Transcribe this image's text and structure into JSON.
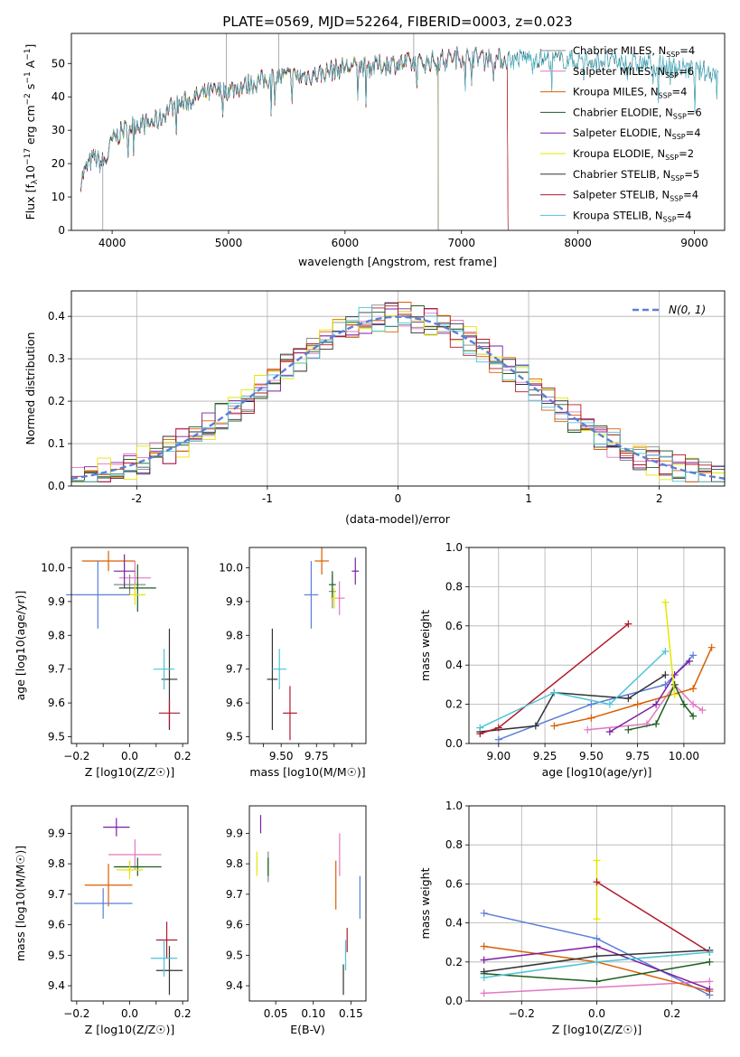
{
  "title": "PLATE=0569, MJD=52264, FIBERID=0003, z=0.023",
  "colors": [
    "#888888",
    "#e377c2",
    "#d95f02",
    "#1b5e20",
    "#7b1fa2",
    "#e6e600",
    "#333333",
    "#b2182b",
    "#4fc3d7"
  ],
  "chart_data": [
    {
      "id": "spectrum",
      "type": "line",
      "xlabel": "wavelength [Angstrom, rest frame]",
      "ylabel": "Flux [f$_\\lambda$10$^{-17}$ erg cm$^{-2}$ s$^{-1}$ A$^{-1}$]",
      "ylabel_main": "Flux [f",
      "ylabel_lambda": "λ",
      "ylabel_rest": "10",
      "ylabel_exp1": "−17",
      "ylabel_mid": " erg cm",
      "ylabel_exp2": "−2",
      "ylabel_mid2": " s",
      "ylabel_exp3": "−1",
      "ylabel_mid3": " A",
      "ylabel_exp4": "−1",
      "ylabel_end": "]",
      "xlim": [
        3650,
        9260
      ],
      "ylim": [
        0,
        59
      ],
      "xticks": [
        4000,
        5000,
        6000,
        7000,
        8000,
        9000
      ],
      "yticks": [
        0,
        10,
        20,
        30,
        40,
        50
      ],
      "spectrum_shape": {
        "x": [
          3730,
          3800,
          3850,
          3900,
          3950,
          4000,
          4100,
          4200,
          4300,
          4400,
          4500,
          4600,
          4800,
          5000,
          5200,
          5400,
          5600,
          5800,
          6000,
          6200,
          6400,
          6600,
          6800,
          7000,
          7200,
          7400,
          7600,
          7800,
          8000,
          8200,
          8400,
          8600,
          8800,
          9000,
          9200
        ],
        "y": [
          15,
          20,
          22,
          20,
          21,
          27,
          30,
          32,
          32,
          33,
          37,
          38,
          41,
          42,
          44,
          46,
          46,
          47,
          49,
          49,
          50,
          50,
          51,
          52,
          52,
          51,
          52,
          51,
          51,
          51,
          50,
          50,
          49,
          48,
          47
        ]
      },
      "series": [
        {
          "name": "Chabrier MILES",
          "nssp": "4",
          "end": 7400
        },
        {
          "name": "Salpeter MILES",
          "nssp": "6",
          "end": 7400
        },
        {
          "name": "Kroupa MILES",
          "nssp": "4",
          "end": 7400
        },
        {
          "name": "Chabrier ELODIE",
          "nssp": "6",
          "end": 6800
        },
        {
          "name": "Salpeter ELODIE",
          "nssp": "4",
          "end": 6800
        },
        {
          "name": "Kroupa ELODIE",
          "nssp": "2",
          "end": 6800
        },
        {
          "name": "Chabrier STELIB",
          "nssp": "5",
          "end": 9260
        },
        {
          "name": "Salpeter STELIB",
          "nssp": "4",
          "end": 7400
        },
        {
          "name": "Kroupa STELIB",
          "nssp": "4",
          "end": 9260
        }
      ]
    },
    {
      "id": "residuals",
      "type": "histogram",
      "xlabel": "(data-model)/error",
      "ylabel": "Normed distribution",
      "xlim": [
        -2.5,
        2.5
      ],
      "ylim": [
        0,
        0.46
      ],
      "xticks": [
        -2,
        -1,
        0,
        1,
        2
      ],
      "yticks": [
        0.0,
        0.1,
        0.2,
        0.3,
        0.4
      ],
      "legend": {
        "label": "N(0, 1)",
        "placement": "top-right"
      },
      "bin_width": 0.1,
      "reference_curve": "normal(0,1)"
    },
    {
      "id": "age-vs-Z",
      "type": "errorbar",
      "xlabel": "Z [log10(Z/Z☉)]",
      "ylabel": "age  [log10(age/yr)]",
      "xlim": [
        -0.22,
        0.22
      ],
      "ylim": [
        9.48,
        10.06
      ],
      "xticks": [
        -0.2,
        -0.1,
        0.0,
        0.1,
        0.2
      ],
      "xticklabels": [
        "−0.2",
        "",
        "0.0",
        "",
        "0.2"
      ],
      "yticks": [
        9.5,
        9.6,
        9.7,
        9.8,
        9.9,
        10.0
      ],
      "points": [
        {
          "x": 0.0,
          "y": 9.95,
          "ex": 0.06,
          "ey": 0.03
        },
        {
          "x": 0.02,
          "y": 9.97,
          "ex": 0.06,
          "ey": 0.05
        },
        {
          "x": -0.08,
          "y": 10.02,
          "ex": 0.1,
          "ey": 0.03
        },
        {
          "x": 0.03,
          "y": 9.94,
          "ex": 0.07,
          "ey": 0.07
        },
        {
          "x": -0.02,
          "y": 9.99,
          "ex": 0.04,
          "ey": 0.05
        },
        {
          "x": 0.02,
          "y": 9.92,
          "ex": 0.04,
          "ey": 0.03
        },
        {
          "x": 0.15,
          "y": 9.67,
          "ex": 0.03,
          "ey": 0.15
        },
        {
          "x": 0.15,
          "y": 9.57,
          "ex": 0.04,
          "ey": 0.04
        },
        {
          "x": 0.13,
          "y": 9.7,
          "ex": 0.04,
          "ey": 0.06
        },
        {
          "x": -0.12,
          "y": 9.92,
          "ex": 0.12,
          "ey": 0.1
        }
      ]
    },
    {
      "id": "age-vs-mass",
      "type": "errorbar",
      "xlabel": "mass [log10(M/M☉)]",
      "ylabel": "",
      "xlim": [
        9.32,
        9.98
      ],
      "ylim": [
        9.48,
        10.06
      ],
      "xticks": [
        9.4,
        9.5,
        9.6,
        9.7,
        9.8,
        9.9
      ],
      "xticklabels": [
        "",
        "9.50",
        "",
        "9.75",
        "",
        ""
      ],
      "yticks": [
        9.5,
        9.6,
        9.7,
        9.8,
        9.9,
        10.0
      ],
      "points": [
        {
          "x": 9.79,
          "y": 9.93,
          "ex": 0.02,
          "ey": 0.05
        },
        {
          "x": 9.83,
          "y": 9.91,
          "ex": 0.03,
          "ey": 0.05
        },
        {
          "x": 9.73,
          "y": 10.02,
          "ex": 0.04,
          "ey": 0.04
        },
        {
          "x": 9.79,
          "y": 9.95,
          "ex": 0.02,
          "ey": 0.04
        },
        {
          "x": 9.92,
          "y": 9.99,
          "ex": 0.02,
          "ey": 0.04
        },
        {
          "x": 9.8,
          "y": 9.91,
          "ex": 0.02,
          "ey": 0.03
        },
        {
          "x": 9.45,
          "y": 9.67,
          "ex": 0.03,
          "ey": 0.15
        },
        {
          "x": 9.55,
          "y": 9.57,
          "ex": 0.04,
          "ey": 0.08
        },
        {
          "x": 9.49,
          "y": 9.7,
          "ex": 0.04,
          "ey": 0.06
        },
        {
          "x": 9.67,
          "y": 9.92,
          "ex": 0.04,
          "ey": 0.1
        }
      ]
    },
    {
      "id": "weight-vs-age",
      "type": "line",
      "xlabel": "age  [log10(age/yr)]",
      "ylabel": "mass weight",
      "xlim": [
        8.84,
        10.22
      ],
      "ylim": [
        0,
        1.0
      ],
      "xticks": [
        9.0,
        9.25,
        9.5,
        9.75,
        10.0
      ],
      "xticklabels": [
        "9.00",
        "9.25",
        "9.50",
        "9.75",
        "10.00"
      ],
      "yticks": [
        0.0,
        0.2,
        0.4,
        0.6,
        0.8,
        1.0
      ],
      "series": [
        {
          "name": "Chabrier MILES",
          "x": [
            9.0,
            9.5,
            9.9,
            10.05
          ],
          "y": [
            0.02,
            0.2,
            0.3,
            0.45
          ]
        },
        {
          "name": "Salpeter MILES",
          "x": [
            9.48,
            9.8,
            9.95,
            10.05,
            10.1
          ],
          "y": [
            0.07,
            0.1,
            0.3,
            0.2,
            0.17
          ]
        },
        {
          "name": "Kroupa MILES",
          "x": [
            9.3,
            9.5,
            9.75,
            10.05,
            10.15
          ],
          "y": [
            0.09,
            0.13,
            0.2,
            0.28,
            0.49
          ]
        },
        {
          "name": "Chabrier ELODIE",
          "x": [
            9.7,
            9.85,
            9.95,
            10.0,
            10.05
          ],
          "y": [
            0.07,
            0.1,
            0.3,
            0.2,
            0.14
          ]
        },
        {
          "name": "Salpeter ELODIE",
          "x": [
            9.6,
            9.85,
            9.95,
            10.03
          ],
          "y": [
            0.06,
            0.2,
            0.35,
            0.42
          ]
        },
        {
          "name": "Kroupa ELODIE",
          "x": [
            9.9,
            9.95
          ],
          "y": [
            0.72,
            0.25
          ]
        },
        {
          "name": "Chabrier STELIB",
          "x": [
            8.9,
            9.2,
            9.3,
            9.7,
            9.9
          ],
          "y": [
            0.06,
            0.09,
            0.26,
            0.23,
            0.35
          ]
        },
        {
          "name": "Salpeter STELIB",
          "x": [
            8.9,
            9.0,
            9.7
          ],
          "y": [
            0.05,
            0.08,
            0.61
          ]
        },
        {
          "name": "Kroupa STELIB",
          "x": [
            8.9,
            9.3,
            9.6,
            9.9
          ],
          "y": [
            0.08,
            0.26,
            0.2,
            0.47
          ]
        }
      ]
    },
    {
      "id": "mass-vs-Z",
      "type": "errorbar",
      "xlabel": "Z [log10(Z/Z☉)]",
      "ylabel": "mass [log10(M/M☉)]",
      "xlim": [
        -0.22,
        0.22
      ],
      "ylim": [
        9.35,
        9.99
      ],
      "xticks": [
        -0.2,
        -0.1,
        0.0,
        0.1,
        0.2
      ],
      "xticklabels": [
        "−0.2",
        "",
        "0.0",
        "",
        "0.2"
      ],
      "yticks": [
        9.4,
        9.5,
        9.6,
        9.7,
        9.8,
        9.9
      ],
      "points": [
        {
          "x": 0.0,
          "y": 9.79,
          "ex": 0.05,
          "ey": 0.02
        },
        {
          "x": 0.02,
          "y": 9.83,
          "ex": 0.1,
          "ey": 0.05
        },
        {
          "x": -0.08,
          "y": 9.73,
          "ex": 0.09,
          "ey": 0.07
        },
        {
          "x": 0.03,
          "y": 9.79,
          "ex": 0.09,
          "ey": 0.03
        },
        {
          "x": -0.05,
          "y": 9.92,
          "ex": 0.05,
          "ey": 0.03
        },
        {
          "x": 0.0,
          "y": 9.78,
          "ex": 0.05,
          "ey": 0.03
        },
        {
          "x": 0.15,
          "y": 9.45,
          "ex": 0.05,
          "ey": 0.08
        },
        {
          "x": 0.14,
          "y": 9.55,
          "ex": 0.04,
          "ey": 0.06
        },
        {
          "x": 0.13,
          "y": 9.49,
          "ex": 0.05,
          "ey": 0.06
        },
        {
          "x": -0.1,
          "y": 9.67,
          "ex": 0.11,
          "ey": 0.05
        }
      ]
    },
    {
      "id": "mass-vs-EBV",
      "type": "errorbar",
      "xlabel": "E(B-V)",
      "ylabel": "",
      "xlim": [
        0.015,
        0.17
      ],
      "ylim": [
        9.35,
        9.99
      ],
      "xticks": [
        0.05,
        0.1,
        0.15
      ],
      "xticklabels": [
        "0.05",
        "0.10",
        "0.15"
      ],
      "yticks": [
        9.4,
        9.5,
        9.6,
        9.7,
        9.8,
        9.9
      ],
      "points": [
        {
          "x": 0.04,
          "y": 9.79,
          "ex": 0.0,
          "ey": 0.05
        },
        {
          "x": 0.135,
          "y": 9.83,
          "ex": 0.0,
          "ey": 0.07
        },
        {
          "x": 0.13,
          "y": 9.73,
          "ex": 0.0,
          "ey": 0.08
        },
        {
          "x": 0.04,
          "y": 9.79,
          "ex": 0.0,
          "ey": 0.03
        },
        {
          "x": 0.03,
          "y": 9.93,
          "ex": 0.0,
          "ey": 0.03
        },
        {
          "x": 0.025,
          "y": 9.8,
          "ex": 0.0,
          "ey": 0.04
        },
        {
          "x": 0.14,
          "y": 9.42,
          "ex": 0.0,
          "ey": 0.05
        },
        {
          "x": 0.145,
          "y": 9.55,
          "ex": 0.0,
          "ey": 0.04
        },
        {
          "x": 0.143,
          "y": 9.5,
          "ex": 0.0,
          "ey": 0.05
        },
        {
          "x": 0.162,
          "y": 9.69,
          "ex": 0.0,
          "ey": 0.07
        }
      ]
    },
    {
      "id": "weight-vs-Z",
      "type": "line",
      "xlabel": "Z [log10(Z/Z☉)]",
      "ylabel": "mass weight",
      "xlim": [
        -0.34,
        0.34
      ],
      "ylim": [
        0,
        1.0
      ],
      "xticks": [
        -0.2,
        0.0,
        0.2
      ],
      "xticklabels": [
        "−0.2",
        "0.0",
        "0.2"
      ],
      "yticks": [
        0.0,
        0.2,
        0.4,
        0.6,
        0.8,
        1.0
      ],
      "series": [
        {
          "name": "Chabrier MILES",
          "x": [
            -0.3,
            0.0,
            0.3
          ],
          "y": [
            0.45,
            0.32,
            0.03
          ]
        },
        {
          "name": "Salpeter MILES",
          "x": [
            -0.3,
            0.3
          ],
          "y": [
            0.04,
            0.1
          ]
        },
        {
          "name": "Kroupa MILES",
          "x": [
            -0.3,
            0.0,
            0.3
          ],
          "y": [
            0.28,
            0.2,
            0.05
          ]
        },
        {
          "name": "Chabrier ELODIE",
          "x": [
            -0.3,
            0.0,
            0.3
          ],
          "y": [
            0.14,
            0.1,
            0.2
          ]
        },
        {
          "name": "Salpeter ELODIE",
          "x": [
            -0.3,
            0.0,
            0.3
          ],
          "y": [
            0.21,
            0.28,
            0.06
          ]
        },
        {
          "name": "Kroupa ELODIE",
          "x": [
            0.0,
            0.0
          ],
          "y": [
            0.72,
            0.42
          ]
        },
        {
          "name": "Chabrier STELIB",
          "x": [
            -0.3,
            0.0,
            0.3
          ],
          "y": [
            0.15,
            0.23,
            0.26
          ]
        },
        {
          "name": "Salpeter STELIB",
          "x": [
            0.0,
            0.3
          ],
          "y": [
            0.61,
            0.25
          ]
        },
        {
          "name": "Kroupa STELIB",
          "x": [
            -0.3,
            0.0,
            0.3
          ],
          "y": [
            0.12,
            0.2,
            0.25
          ]
        }
      ]
    }
  ]
}
